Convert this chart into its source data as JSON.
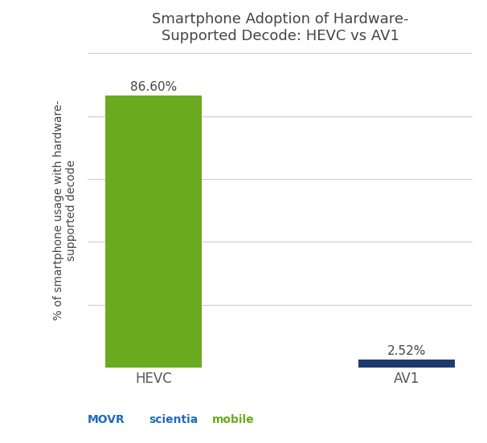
{
  "categories": [
    "HEVC",
    "AV1"
  ],
  "values": [
    86.6,
    2.52
  ],
  "bar_colors": [
    "#6aaa1e",
    "#1f3a6e"
  ],
  "title_line1": "Smartphone Adoption of Hardware-",
  "title_line2": "Supported Decode: HEVC vs AV1",
  "ylabel_line1": "% of smartphone usage with hardware-",
  "ylabel_line2": "supported decode",
  "ylim": [
    0,
    100
  ],
  "value_labels": [
    "86.60%",
    "2.52%"
  ],
  "background_color": "#ffffff",
  "grid_color": "#cccccc",
  "bar_width": 0.38,
  "movr_color": "#1f6bbf",
  "scientia_color": "#1f6bbf",
  "mobile_color": "#6aaa1e",
  "title_color": "#444444",
  "label_color": "#555555"
}
